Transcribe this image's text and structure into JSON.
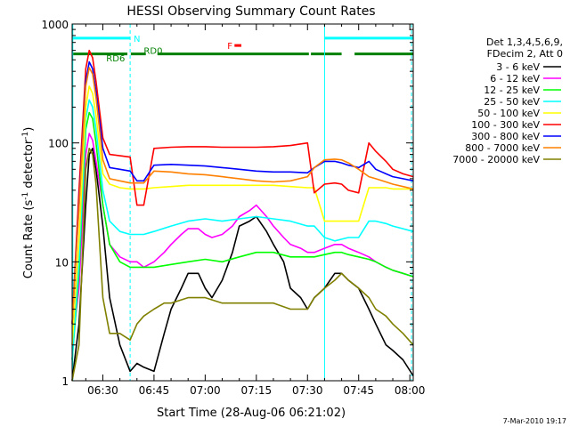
{
  "chart_data": {
    "type": "line",
    "title": "HESSI Observing Summary Count Rates",
    "xlabel": "Start Time (28-Aug-06 06:21:02)",
    "ylabel_main": "Count Rate (s",
    "ylabel_sup1": "-1",
    "ylabel_mid": " detector",
    "ylabel_sup2": "-1",
    "ylabel_end": ")",
    "x_start_minutes": 381.0,
    "x_end_minutes": 481.0,
    "ylim": [
      1,
      1000
    ],
    "y_scale": "log",
    "x_ticks": [
      {
        "label": "06:30",
        "minutes": 390
      },
      {
        "label": "06:45",
        "minutes": 405
      },
      {
        "label": "07:00",
        "minutes": 420
      },
      {
        "label": "07:15",
        "minutes": 435
      },
      {
        "label": "07:30",
        "minutes": 450
      },
      {
        "label": "07:45",
        "minutes": 465
      },
      {
        "label": "08:00",
        "minutes": 480
      }
    ],
    "y_ticks": [
      {
        "label": "1",
        "value": 1
      },
      {
        "label": "10",
        "value": 10
      },
      {
        "label": "100",
        "value": 100
      },
      {
        "label": "1000",
        "value": 1000
      }
    ],
    "legend_header": [
      "Det 1,3,4,5,6,9,",
      "FDecim 2, Att 0"
    ],
    "legend_placement": "right",
    "footer": "7-Mar-2010 19:17",
    "vertical_markers": [
      {
        "minutes": 381.2,
        "style": "solid",
        "color": "#00ffff"
      },
      {
        "minutes": 398.0,
        "style": "dashed",
        "color": "#00ffff"
      },
      {
        "minutes": 455.0,
        "style": "solid",
        "color": "#00ffff"
      },
      {
        "minutes": 480.5,
        "style": "dashed",
        "color": "#00ffff"
      }
    ],
    "status_bars": [
      {
        "label": "N",
        "color": "#00ffff",
        "row_value": 760,
        "segments": [
          [
            381.2,
            398.0
          ],
          [
            455.0,
            481.0
          ]
        ],
        "label_at": 399.0
      },
      {
        "label": "F",
        "color": "#ff0000",
        "row_value": 660,
        "segments": [
          [
            428.6,
            430.6
          ]
        ],
        "label_at": 426.5
      },
      {
        "label": "RD6",
        "color": "#008000",
        "row_value": 560,
        "segments": [
          [
            381.2,
            397.2
          ],
          [
            398.2,
            402.6
          ],
          [
            406.0,
            450.4
          ],
          [
            451.0,
            460.0
          ],
          [
            463.8,
            481.0
          ]
        ],
        "label_at": 391.0,
        "label_y": 520
      },
      {
        "label": "RD0",
        "color": "#008000",
        "row_value": 560,
        "segments": [],
        "label_at": 402.0,
        "label_y": 600
      }
    ],
    "series": [
      {
        "name": "3 - 6 keV",
        "color": "#000000",
        "x": [
          381,
          383,
          385,
          386,
          387,
          388,
          390,
          392,
          395,
          398,
          400,
          402,
          405,
          408,
          410,
          413,
          415,
          418,
          420,
          422,
          425,
          428,
          430,
          433,
          435,
          438,
          440,
          443,
          445,
          448,
          450,
          452,
          455,
          458,
          460,
          462,
          465,
          468,
          470,
          473,
          475,
          478,
          481
        ],
        "y": [
          1.0,
          3.0,
          30,
          80,
          90,
          60,
          20,
          5,
          2.0,
          1.2,
          1.4,
          1.3,
          1.2,
          2.5,
          4,
          6,
          8,
          8,
          6,
          5,
          7,
          12,
          20,
          22,
          24,
          18,
          14,
          10,
          6,
          5,
          4,
          5,
          6,
          8,
          8,
          7,
          6,
          4,
          3,
          2,
          1.8,
          1.5,
          1.1
        ]
      },
      {
        "name": "6 - 12 keV",
        "color": "#ff00ff",
        "x": [
          381,
          383,
          385,
          386,
          387,
          388,
          390,
          392,
          395,
          398,
          400,
          402,
          405,
          408,
          410,
          413,
          415,
          418,
          420,
          422,
          425,
          428,
          430,
          433,
          435,
          438,
          440,
          443,
          445,
          448,
          450,
          452,
          455,
          458,
          460,
          462,
          465,
          468,
          470,
          473,
          475,
          478,
          481
        ],
        "y": [
          2.0,
          6,
          80,
          120,
          105,
          70,
          30,
          14,
          11,
          10,
          10,
          9,
          10,
          12,
          14,
          17,
          19,
          19,
          17,
          16,
          17,
          20,
          24,
          27,
          30,
          24,
          20,
          16,
          14,
          13,
          12,
          12,
          13,
          14,
          14,
          13,
          12,
          11,
          10,
          9,
          8.5,
          8,
          7.5
        ]
      },
      {
        "name": "12 - 25 keV",
        "color": "#00ff00",
        "x": [
          381,
          383,
          385,
          386,
          387,
          388,
          390,
          392,
          395,
          398,
          400,
          402,
          405,
          410,
          415,
          420,
          425,
          430,
          435,
          440,
          445,
          450,
          452,
          455,
          458,
          460,
          462,
          465,
          468,
          470,
          473,
          475,
          478,
          481
        ],
        "y": [
          1.5,
          8,
          130,
          180,
          160,
          100,
          30,
          14,
          10,
          9,
          9,
          9,
          9,
          9.5,
          10,
          10.5,
          10,
          11,
          12,
          12,
          11,
          11,
          11,
          11.5,
          12,
          12,
          11.5,
          11,
          10.5,
          10,
          9,
          8.5,
          8,
          7.5
        ]
      },
      {
        "name": "25 - 50 keV",
        "color": "#00ffff",
        "x": [
          381,
          383,
          385,
          386,
          387,
          388,
          390,
          392,
          395,
          398,
          400,
          402,
          405,
          410,
          415,
          420,
          425,
          430,
          435,
          440,
          445,
          450,
          452,
          455,
          458,
          460,
          462,
          465,
          468,
          470,
          473,
          475,
          478,
          481
        ],
        "y": [
          1.5,
          10,
          160,
          230,
          200,
          130,
          40,
          22,
          18,
          17,
          17,
          17,
          18,
          20,
          22,
          23,
          22,
          23,
          24,
          23,
          22,
          20,
          20,
          16,
          15,
          15.5,
          16,
          16,
          22,
          22,
          21,
          20,
          19,
          18
        ]
      },
      {
        "name": "50 - 100 keV",
        "color": "#ffff00",
        "x": [
          381,
          383,
          385,
          386,
          387,
          388,
          390,
          392,
          395,
          398,
          400,
          402,
          405,
          410,
          415,
          420,
          425,
          430,
          435,
          440,
          445,
          450,
          452,
          455,
          458,
          460,
          462,
          465,
          468,
          470,
          473,
          475,
          478,
          481
        ],
        "y": [
          2.0,
          15,
          200,
          300,
          260,
          170,
          55,
          45,
          42,
          41,
          41,
          41,
          42,
          43,
          44,
          44,
          44,
          44,
          44,
          44,
          43,
          42,
          42,
          22,
          22,
          22,
          22,
          22,
          42,
          42,
          42,
          41,
          41,
          41
        ]
      },
      {
        "name": "100 - 300 keV",
        "color": "#ff0000",
        "x": [
          381,
          383,
          385,
          386,
          387,
          388,
          390,
          392,
          395,
          398,
          400,
          402,
          405,
          410,
          415,
          420,
          425,
          430,
          435,
          440,
          445,
          450,
          452,
          455,
          458,
          460,
          462,
          465,
          468,
          470,
          473,
          475,
          478,
          481
        ],
        "y": [
          3.0,
          40,
          420,
          600,
          520,
          330,
          110,
          80,
          78,
          76,
          30,
          30,
          90,
          92,
          93,
          93,
          92,
          92,
          92,
          93,
          95,
          100,
          38,
          45,
          46,
          45,
          40,
          38,
          100,
          85,
          70,
          60,
          55,
          52
        ]
      },
      {
        "name": "300 - 800 keV",
        "color": "#0000ff",
        "x": [
          381,
          383,
          385,
          386,
          387,
          388,
          390,
          392,
          395,
          398,
          400,
          402,
          405,
          410,
          415,
          420,
          425,
          430,
          435,
          440,
          445,
          450,
          452,
          455,
          458,
          460,
          462,
          465,
          468,
          470,
          473,
          475,
          478,
          481
        ],
        "y": [
          3.0,
          30,
          330,
          480,
          420,
          270,
          90,
          62,
          60,
          58,
          48,
          48,
          65,
          66,
          65,
          64,
          62,
          60,
          58,
          57,
          57,
          56,
          62,
          70,
          70,
          68,
          65,
          62,
          70,
          60,
          55,
          52,
          50,
          48
        ]
      },
      {
        "name": "800 - 7000 keV",
        "color": "#ff8000",
        "x": [
          381,
          383,
          385,
          386,
          387,
          388,
          390,
          392,
          395,
          398,
          400,
          402,
          405,
          410,
          415,
          420,
          425,
          430,
          435,
          440,
          445,
          450,
          452,
          455,
          458,
          460,
          462,
          465,
          468,
          470,
          473,
          475,
          478,
          481
        ],
        "y": [
          3.0,
          28,
          300,
          430,
          380,
          240,
          72,
          50,
          48,
          46,
          46,
          46,
          58,
          57,
          55,
          54,
          52,
          50,
          48,
          47,
          48,
          52,
          62,
          72,
          73,
          72,
          68,
          60,
          52,
          50,
          47,
          45,
          43,
          41
        ]
      },
      {
        "name": "7000 - 20000 keV",
        "color": "#808000",
        "x": [
          381,
          383,
          385,
          386,
          387,
          388,
          390,
          392,
          395,
          398,
          400,
          402,
          405,
          408,
          410,
          415,
          420,
          425,
          430,
          435,
          440,
          445,
          448,
          450,
          452,
          455,
          458,
          460,
          462,
          465,
          468,
          470,
          473,
          475,
          478,
          481
        ],
        "y": [
          1.0,
          2.0,
          60,
          90,
          80,
          45,
          5,
          2.5,
          2.5,
          2.2,
          3.0,
          3.5,
          4.0,
          4.5,
          4.5,
          5.0,
          5.0,
          4.5,
          4.5,
          4.5,
          4.5,
          4.0,
          4.0,
          4.0,
          5.0,
          6.0,
          7.0,
          8.0,
          7.0,
          6.0,
          5.0,
          4.0,
          3.5,
          3.0,
          2.5,
          2.0
        ]
      }
    ]
  }
}
